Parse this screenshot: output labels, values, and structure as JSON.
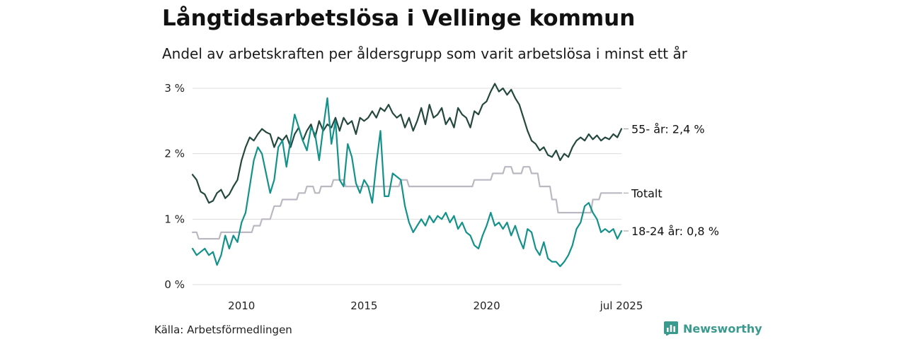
{
  "header": {
    "title": "Långtidsarbetslösa i Vellinge kommun",
    "subtitle": "Andel av arbetskraften per åldersgrupp som varit arbetslösa i minst ett år"
  },
  "footer": {
    "source": "Källa: Arbetsförmedlingen",
    "brand": "Newsworthy",
    "brand_color": "#3a9a8e"
  },
  "chart_data": {
    "type": "line",
    "title": "Långtidsarbetslösa i Vellinge kommun",
    "subtitle": "Andel av arbetskraften per åldersgrupp som varit arbetslösa i minst ett år",
    "xlabel": "",
    "ylabel": "",
    "x_range": [
      "2008-01",
      "2025-07"
    ],
    "ylim": [
      0,
      3.1
    ],
    "y_ticks": [
      {
        "value": 0,
        "label": "0 %"
      },
      {
        "value": 1,
        "label": "1 %"
      },
      {
        "value": 2,
        "label": "2 %"
      },
      {
        "value": 3,
        "label": "3 %"
      }
    ],
    "x_ticks": [
      {
        "value": "2010-01",
        "label": "2010"
      },
      {
        "value": "2015-01",
        "label": "2015"
      },
      {
        "value": "2020-01",
        "label": "2020"
      },
      {
        "value": "2025-07",
        "label": "jul 2025"
      }
    ],
    "grid": "horizontal",
    "legend": "end-labels",
    "series": [
      {
        "name": "55- år",
        "end_label": "55- år: 2,4 %",
        "color": "#24483e",
        "points": [
          [
            "2008-01",
            1.68
          ],
          [
            "2008-03",
            1.6
          ],
          [
            "2008-05",
            1.42
          ],
          [
            "2008-07",
            1.38
          ],
          [
            "2008-09",
            1.25
          ],
          [
            "2008-11",
            1.28
          ],
          [
            "2009-01",
            1.4
          ],
          [
            "2009-03",
            1.45
          ],
          [
            "2009-05",
            1.32
          ],
          [
            "2009-07",
            1.38
          ],
          [
            "2009-09",
            1.5
          ],
          [
            "2009-11",
            1.6
          ],
          [
            "2010-01",
            1.9
          ],
          [
            "2010-03",
            2.1
          ],
          [
            "2010-05",
            2.25
          ],
          [
            "2010-07",
            2.2
          ],
          [
            "2010-09",
            2.3
          ],
          [
            "2010-11",
            2.38
          ],
          [
            "2011-01",
            2.33
          ],
          [
            "2011-03",
            2.3
          ],
          [
            "2011-05",
            2.1
          ],
          [
            "2011-07",
            2.25
          ],
          [
            "2011-09",
            2.2
          ],
          [
            "2011-11",
            2.28
          ],
          [
            "2012-01",
            2.1
          ],
          [
            "2012-03",
            2.3
          ],
          [
            "2012-05",
            2.4
          ],
          [
            "2012-07",
            2.2
          ],
          [
            "2012-09",
            2.35
          ],
          [
            "2012-11",
            2.45
          ],
          [
            "2013-01",
            2.25
          ],
          [
            "2013-03",
            2.5
          ],
          [
            "2013-05",
            2.35
          ],
          [
            "2013-07",
            2.45
          ],
          [
            "2013-09",
            2.4
          ],
          [
            "2013-11",
            2.55
          ],
          [
            "2014-01",
            2.35
          ],
          [
            "2014-03",
            2.55
          ],
          [
            "2014-05",
            2.45
          ],
          [
            "2014-07",
            2.5
          ],
          [
            "2014-09",
            2.3
          ],
          [
            "2014-11",
            2.55
          ],
          [
            "2015-01",
            2.5
          ],
          [
            "2015-03",
            2.55
          ],
          [
            "2015-05",
            2.65
          ],
          [
            "2015-07",
            2.55
          ],
          [
            "2015-09",
            2.7
          ],
          [
            "2015-11",
            2.65
          ],
          [
            "2016-01",
            2.75
          ],
          [
            "2016-03",
            2.62
          ],
          [
            "2016-05",
            2.55
          ],
          [
            "2016-07",
            2.6
          ],
          [
            "2016-09",
            2.4
          ],
          [
            "2016-11",
            2.55
          ],
          [
            "2017-01",
            2.35
          ],
          [
            "2017-03",
            2.5
          ],
          [
            "2017-05",
            2.7
          ],
          [
            "2017-07",
            2.45
          ],
          [
            "2017-09",
            2.75
          ],
          [
            "2017-11",
            2.55
          ],
          [
            "2018-01",
            2.6
          ],
          [
            "2018-03",
            2.7
          ],
          [
            "2018-05",
            2.45
          ],
          [
            "2018-07",
            2.55
          ],
          [
            "2018-09",
            2.4
          ],
          [
            "2018-11",
            2.7
          ],
          [
            "2019-01",
            2.6
          ],
          [
            "2019-03",
            2.55
          ],
          [
            "2019-05",
            2.4
          ],
          [
            "2019-07",
            2.65
          ],
          [
            "2019-09",
            2.6
          ],
          [
            "2019-11",
            2.75
          ],
          [
            "2020-01",
            2.8
          ],
          [
            "2020-03",
            2.95
          ],
          [
            "2020-05",
            3.07
          ],
          [
            "2020-07",
            2.95
          ],
          [
            "2020-09",
            3.0
          ],
          [
            "2020-11",
            2.9
          ],
          [
            "2021-01",
            2.98
          ],
          [
            "2021-03",
            2.85
          ],
          [
            "2021-05",
            2.75
          ],
          [
            "2021-07",
            2.55
          ],
          [
            "2021-09",
            2.35
          ],
          [
            "2021-11",
            2.2
          ],
          [
            "2022-01",
            2.15
          ],
          [
            "2022-03",
            2.05
          ],
          [
            "2022-05",
            2.1
          ],
          [
            "2022-07",
            1.98
          ],
          [
            "2022-09",
            1.95
          ],
          [
            "2022-11",
            2.05
          ],
          [
            "2023-01",
            1.9
          ],
          [
            "2023-03",
            2.0
          ],
          [
            "2023-05",
            1.95
          ],
          [
            "2023-07",
            2.1
          ],
          [
            "2023-09",
            2.2
          ],
          [
            "2023-11",
            2.25
          ],
          [
            "2024-01",
            2.2
          ],
          [
            "2024-03",
            2.3
          ],
          [
            "2024-05",
            2.22
          ],
          [
            "2024-07",
            2.28
          ],
          [
            "2024-09",
            2.2
          ],
          [
            "2024-11",
            2.25
          ],
          [
            "2025-01",
            2.22
          ],
          [
            "2025-03",
            2.3
          ],
          [
            "2025-05",
            2.25
          ],
          [
            "2025-07",
            2.38
          ]
        ]
      },
      {
        "name": "Totalt",
        "end_label": "Totalt",
        "color": "#bcb8c2",
        "points": [
          [
            "2008-01",
            0.8
          ],
          [
            "2008-03",
            0.8
          ],
          [
            "2008-04",
            0.7
          ],
          [
            "2009-02",
            0.7
          ],
          [
            "2009-03",
            0.8
          ],
          [
            "2010-06",
            0.8
          ],
          [
            "2010-07",
            0.9
          ],
          [
            "2010-10",
            0.9
          ],
          [
            "2010-11",
            1.0
          ],
          [
            "2011-03",
            1.0
          ],
          [
            "2011-04",
            1.1
          ],
          [
            "2011-05",
            1.2
          ],
          [
            "2011-08",
            1.2
          ],
          [
            "2011-09",
            1.3
          ],
          [
            "2012-04",
            1.3
          ],
          [
            "2012-05",
            1.4
          ],
          [
            "2012-08",
            1.4
          ],
          [
            "2012-09",
            1.5
          ],
          [
            "2012-12",
            1.5
          ],
          [
            "2013-01",
            1.4
          ],
          [
            "2013-03",
            1.4
          ],
          [
            "2013-04",
            1.5
          ],
          [
            "2013-09",
            1.5
          ],
          [
            "2013-10",
            1.6
          ],
          [
            "2014-03",
            1.6
          ],
          [
            "2014-04",
            1.5
          ],
          [
            "2016-06",
            1.5
          ],
          [
            "2016-07",
            1.6
          ],
          [
            "2016-10",
            1.6
          ],
          [
            "2016-11",
            1.5
          ],
          [
            "2019-06",
            1.5
          ],
          [
            "2019-07",
            1.6
          ],
          [
            "2020-03",
            1.6
          ],
          [
            "2020-04",
            1.7
          ],
          [
            "2020-09",
            1.7
          ],
          [
            "2020-10",
            1.8
          ],
          [
            "2021-01",
            1.8
          ],
          [
            "2021-02",
            1.7
          ],
          [
            "2021-06",
            1.7
          ],
          [
            "2021-07",
            1.8
          ],
          [
            "2021-10",
            1.8
          ],
          [
            "2021-11",
            1.7
          ],
          [
            "2022-02",
            1.7
          ],
          [
            "2022-03",
            1.5
          ],
          [
            "2022-08",
            1.5
          ],
          [
            "2022-09",
            1.3
          ],
          [
            "2022-11",
            1.3
          ],
          [
            "2022-12",
            1.1
          ],
          [
            "2024-04",
            1.1
          ],
          [
            "2024-05",
            1.3
          ],
          [
            "2024-08",
            1.3
          ],
          [
            "2024-09",
            1.4
          ],
          [
            "2025-07",
            1.4
          ]
        ]
      },
      {
        "name": "18-24 år",
        "end_label": "18-24 år: 0,8 %",
        "color": "#12928a",
        "points": [
          [
            "2008-01",
            0.55
          ],
          [
            "2008-03",
            0.45
          ],
          [
            "2008-05",
            0.5
          ],
          [
            "2008-07",
            0.55
          ],
          [
            "2008-09",
            0.45
          ],
          [
            "2008-11",
            0.5
          ],
          [
            "2009-01",
            0.3
          ],
          [
            "2009-03",
            0.45
          ],
          [
            "2009-05",
            0.75
          ],
          [
            "2009-07",
            0.55
          ],
          [
            "2009-09",
            0.75
          ],
          [
            "2009-11",
            0.65
          ],
          [
            "2010-01",
            0.95
          ],
          [
            "2010-03",
            1.1
          ],
          [
            "2010-05",
            1.5
          ],
          [
            "2010-07",
            1.9
          ],
          [
            "2010-09",
            2.1
          ],
          [
            "2010-11",
            2.0
          ],
          [
            "2011-01",
            1.7
          ],
          [
            "2011-03",
            1.4
          ],
          [
            "2011-05",
            1.6
          ],
          [
            "2011-07",
            2.1
          ],
          [
            "2011-09",
            2.2
          ],
          [
            "2011-11",
            1.8
          ],
          [
            "2012-01",
            2.2
          ],
          [
            "2012-03",
            2.6
          ],
          [
            "2012-05",
            2.4
          ],
          [
            "2012-07",
            2.2
          ],
          [
            "2012-09",
            2.05
          ],
          [
            "2012-11",
            2.4
          ],
          [
            "2013-01",
            2.3
          ],
          [
            "2013-03",
            1.9
          ],
          [
            "2013-05",
            2.4
          ],
          [
            "2013-07",
            2.85
          ],
          [
            "2013-09",
            2.15
          ],
          [
            "2013-11",
            2.5
          ],
          [
            "2014-01",
            1.6
          ],
          [
            "2014-03",
            1.5
          ],
          [
            "2014-05",
            2.15
          ],
          [
            "2014-07",
            1.95
          ],
          [
            "2014-09",
            1.55
          ],
          [
            "2014-11",
            1.4
          ],
          [
            "2015-01",
            1.6
          ],
          [
            "2015-03",
            1.5
          ],
          [
            "2015-05",
            1.25
          ],
          [
            "2015-07",
            1.85
          ],
          [
            "2015-09",
            2.35
          ],
          [
            "2015-11",
            1.35
          ],
          [
            "2016-01",
            1.35
          ],
          [
            "2016-03",
            1.7
          ],
          [
            "2016-05",
            1.65
          ],
          [
            "2016-07",
            1.6
          ],
          [
            "2016-09",
            1.2
          ],
          [
            "2016-11",
            0.95
          ],
          [
            "2017-01",
            0.8
          ],
          [
            "2017-03",
            0.9
          ],
          [
            "2017-05",
            1.0
          ],
          [
            "2017-07",
            0.9
          ],
          [
            "2017-09",
            1.05
          ],
          [
            "2017-11",
            0.95
          ],
          [
            "2018-01",
            1.05
          ],
          [
            "2018-03",
            1.0
          ],
          [
            "2018-05",
            1.1
          ],
          [
            "2018-07",
            0.95
          ],
          [
            "2018-09",
            1.05
          ],
          [
            "2018-11",
            0.85
          ],
          [
            "2019-01",
            0.95
          ],
          [
            "2019-03",
            0.8
          ],
          [
            "2019-05",
            0.75
          ],
          [
            "2019-07",
            0.6
          ],
          [
            "2019-09",
            0.55
          ],
          [
            "2019-11",
            0.75
          ],
          [
            "2020-01",
            0.9
          ],
          [
            "2020-03",
            1.1
          ],
          [
            "2020-05",
            0.9
          ],
          [
            "2020-07",
            0.95
          ],
          [
            "2020-09",
            0.85
          ],
          [
            "2020-11",
            0.95
          ],
          [
            "2021-01",
            0.75
          ],
          [
            "2021-03",
            0.9
          ],
          [
            "2021-05",
            0.7
          ],
          [
            "2021-07",
            0.55
          ],
          [
            "2021-09",
            0.85
          ],
          [
            "2021-11",
            0.8
          ],
          [
            "2022-01",
            0.55
          ],
          [
            "2022-03",
            0.45
          ],
          [
            "2022-05",
            0.65
          ],
          [
            "2022-07",
            0.4
          ],
          [
            "2022-09",
            0.35
          ],
          [
            "2022-11",
            0.35
          ],
          [
            "2023-01",
            0.28
          ],
          [
            "2023-03",
            0.35
          ],
          [
            "2023-05",
            0.45
          ],
          [
            "2023-07",
            0.6
          ],
          [
            "2023-09",
            0.85
          ],
          [
            "2023-11",
            0.95
          ],
          [
            "2024-01",
            1.2
          ],
          [
            "2024-03",
            1.25
          ],
          [
            "2024-05",
            1.1
          ],
          [
            "2024-07",
            1.0
          ],
          [
            "2024-09",
            0.8
          ],
          [
            "2024-11",
            0.85
          ],
          [
            "2025-01",
            0.8
          ],
          [
            "2025-03",
            0.85
          ],
          [
            "2025-05",
            0.7
          ],
          [
            "2025-07",
            0.82
          ]
        ]
      }
    ]
  }
}
